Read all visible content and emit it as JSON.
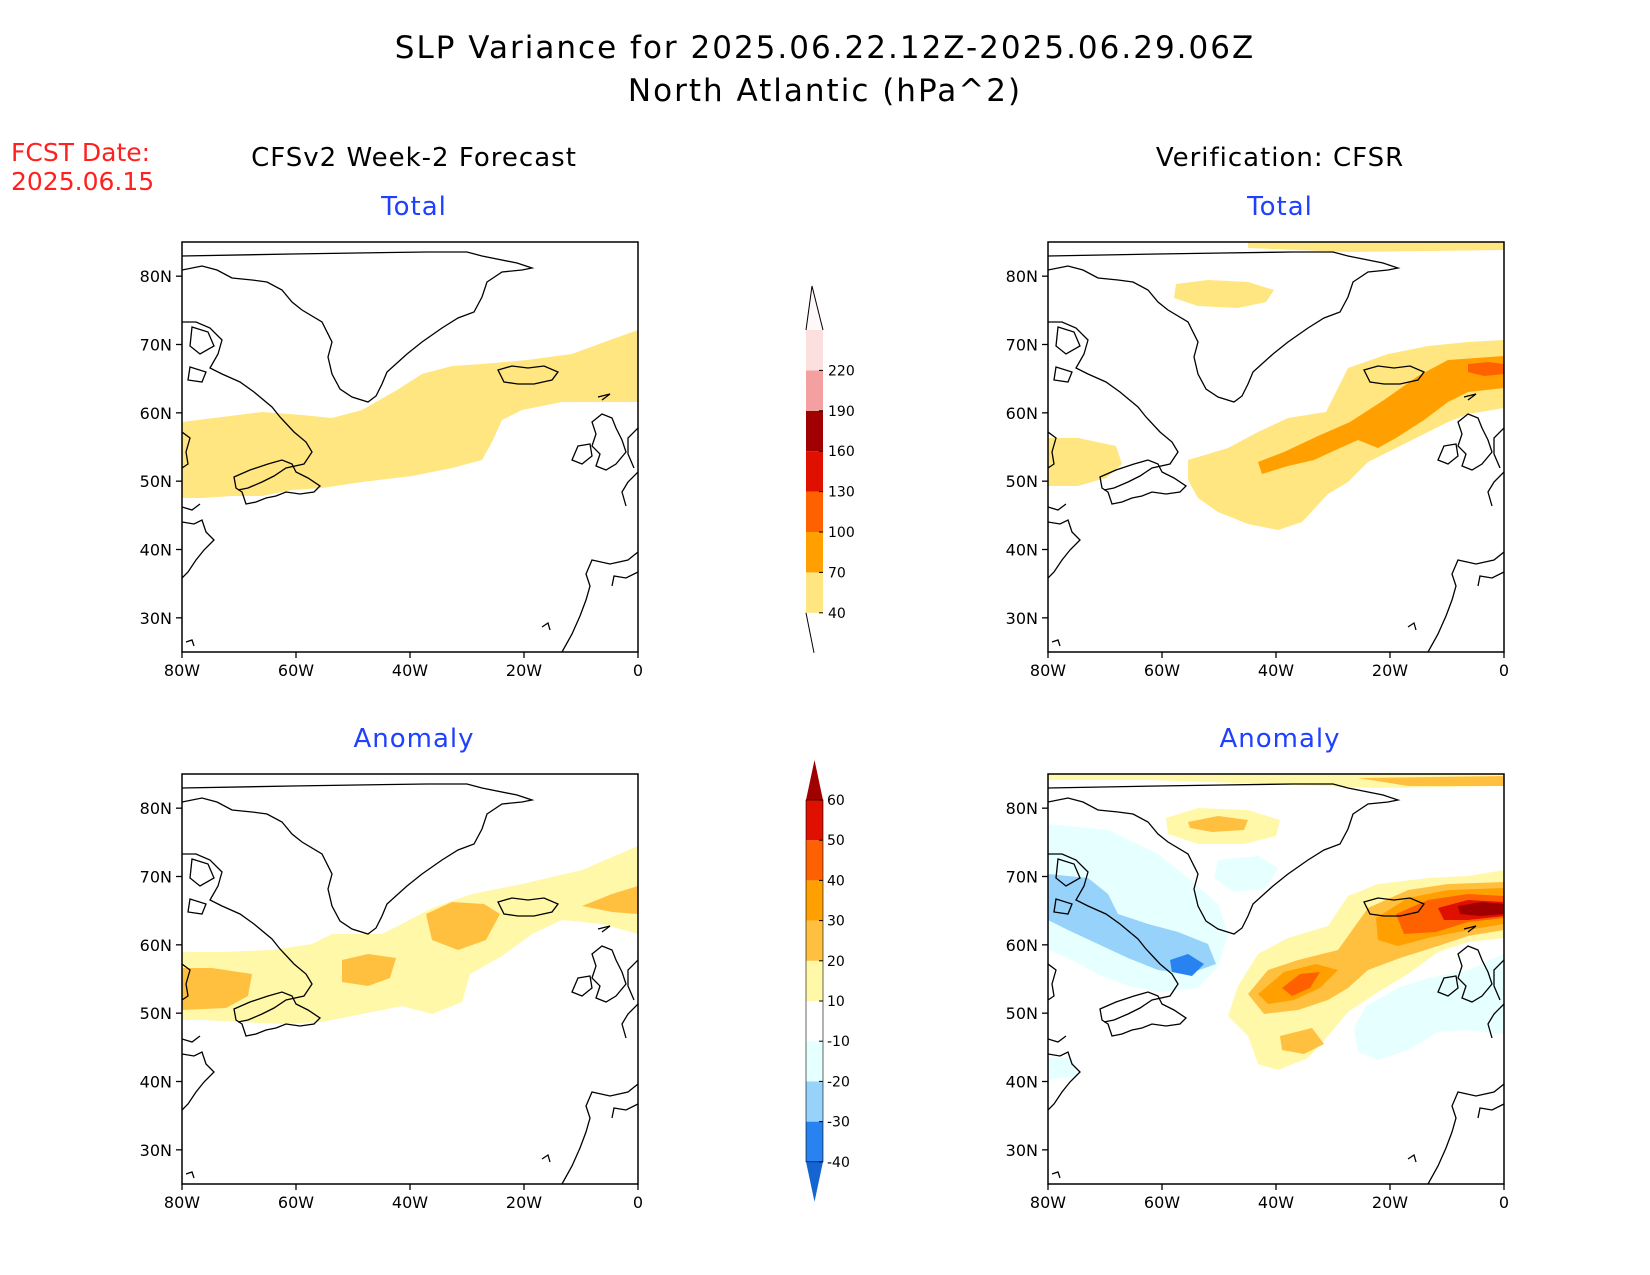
{
  "title": {
    "line1": "SLP Variance for 2025.06.22.12Z-2025.06.29.06Z",
    "line2": "North Atlantic (hPa^2)"
  },
  "fcst_date": {
    "label": "FCST Date:",
    "value": "2025.06.15"
  },
  "columns": {
    "left": "CFSv2 Week-2 Forecast",
    "right": "Verification: CFSR"
  },
  "panel_titles": {
    "total": "Total",
    "anomaly": "Anomaly"
  },
  "axes": {
    "lat_labels": [
      "30N",
      "40N",
      "50N",
      "60N",
      "70N",
      "80N"
    ],
    "lat_values": [
      30,
      40,
      50,
      60,
      70,
      80
    ],
    "lon_labels": [
      "80W",
      "60W",
      "40W",
      "20W",
      "0"
    ],
    "lon_values": [
      -80,
      -60,
      -40,
      -20,
      0
    ],
    "lat_range": [
      25,
      85
    ],
    "lon_range": [
      -80,
      0
    ]
  },
  "colorbars": {
    "total": {
      "labels": [
        "40",
        "70",
        "100",
        "130",
        "160",
        "190",
        "220"
      ],
      "colors": [
        "#ffe680",
        "#ffa000",
        "#ff6000",
        "#e01000",
        "#a00000",
        "#f4a0a0",
        "#fce0e0"
      ]
    },
    "anomaly": {
      "labels": [
        "-40",
        "-30",
        "-20",
        "-10",
        "10",
        "20",
        "30",
        "40",
        "50",
        "60"
      ],
      "colors": [
        "#1464d2",
        "#2882f0",
        "#96d2fa",
        "#e6ffff",
        "#ffffff",
        "#fff8a8",
        "#ffc040",
        "#ffa000",
        "#ff6000",
        "#e01000",
        "#a00000"
      ]
    }
  }
}
